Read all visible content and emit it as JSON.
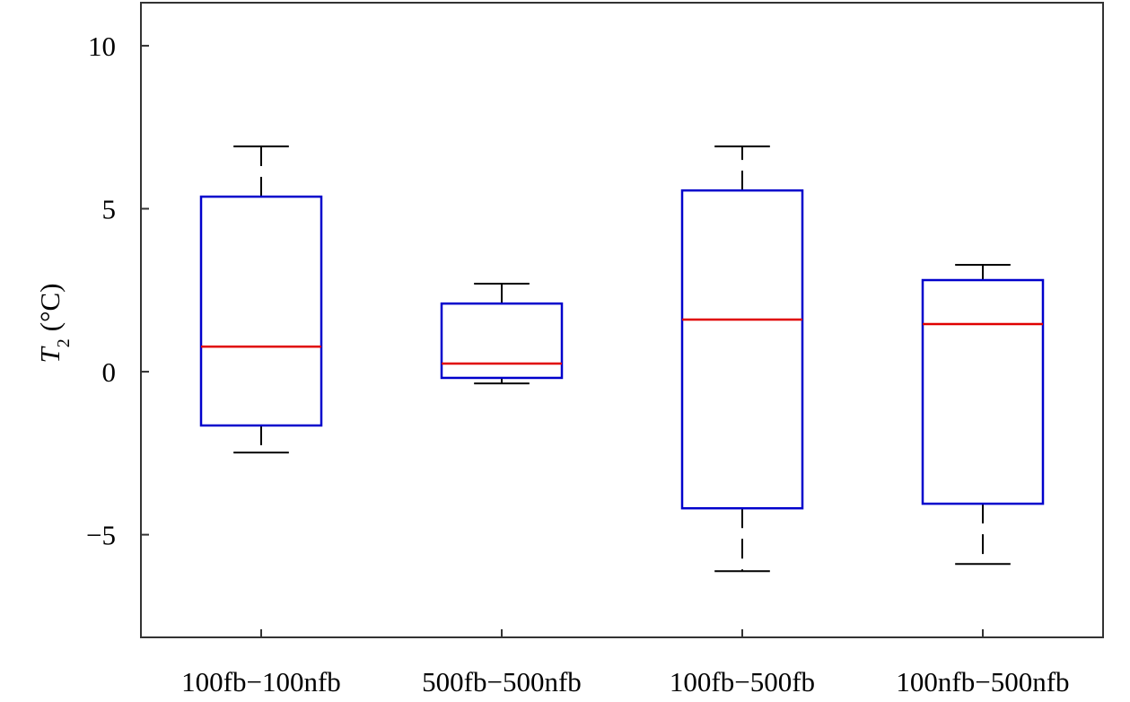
{
  "chart_data": {
    "type": "box",
    "ylabel": {
      "symbol": "T",
      "subscript": "2",
      "unit": "(°C)"
    },
    "categories": [
      "100fb−100nfb",
      "500fb−500nfb",
      "100fb−500fb",
      "100nfb−500nfb"
    ],
    "boxes": [
      {
        "min": -2.48,
        "q1": -1.65,
        "median": 0.77,
        "q3": 5.37,
        "max": 6.91
      },
      {
        "min": -0.36,
        "q1": -0.19,
        "median": 0.25,
        "q3": 2.09,
        "max": 2.7
      },
      {
        "min": -6.12,
        "q1": -4.19,
        "median": 1.6,
        "q3": 5.56,
        "max": 6.91
      },
      {
        "min": -5.9,
        "q1": -4.05,
        "median": 1.46,
        "q3": 2.81,
        "max": 3.28
      }
    ],
    "box_color": "#0000cc",
    "median_color": "#e00000",
    "whisker_color": "#000000",
    "ylim": [
      -8.15,
      11.32
    ],
    "yticks": [
      {
        "value": -5,
        "label": "−5"
      },
      0,
      5,
      10
    ],
    "grid": false
  }
}
